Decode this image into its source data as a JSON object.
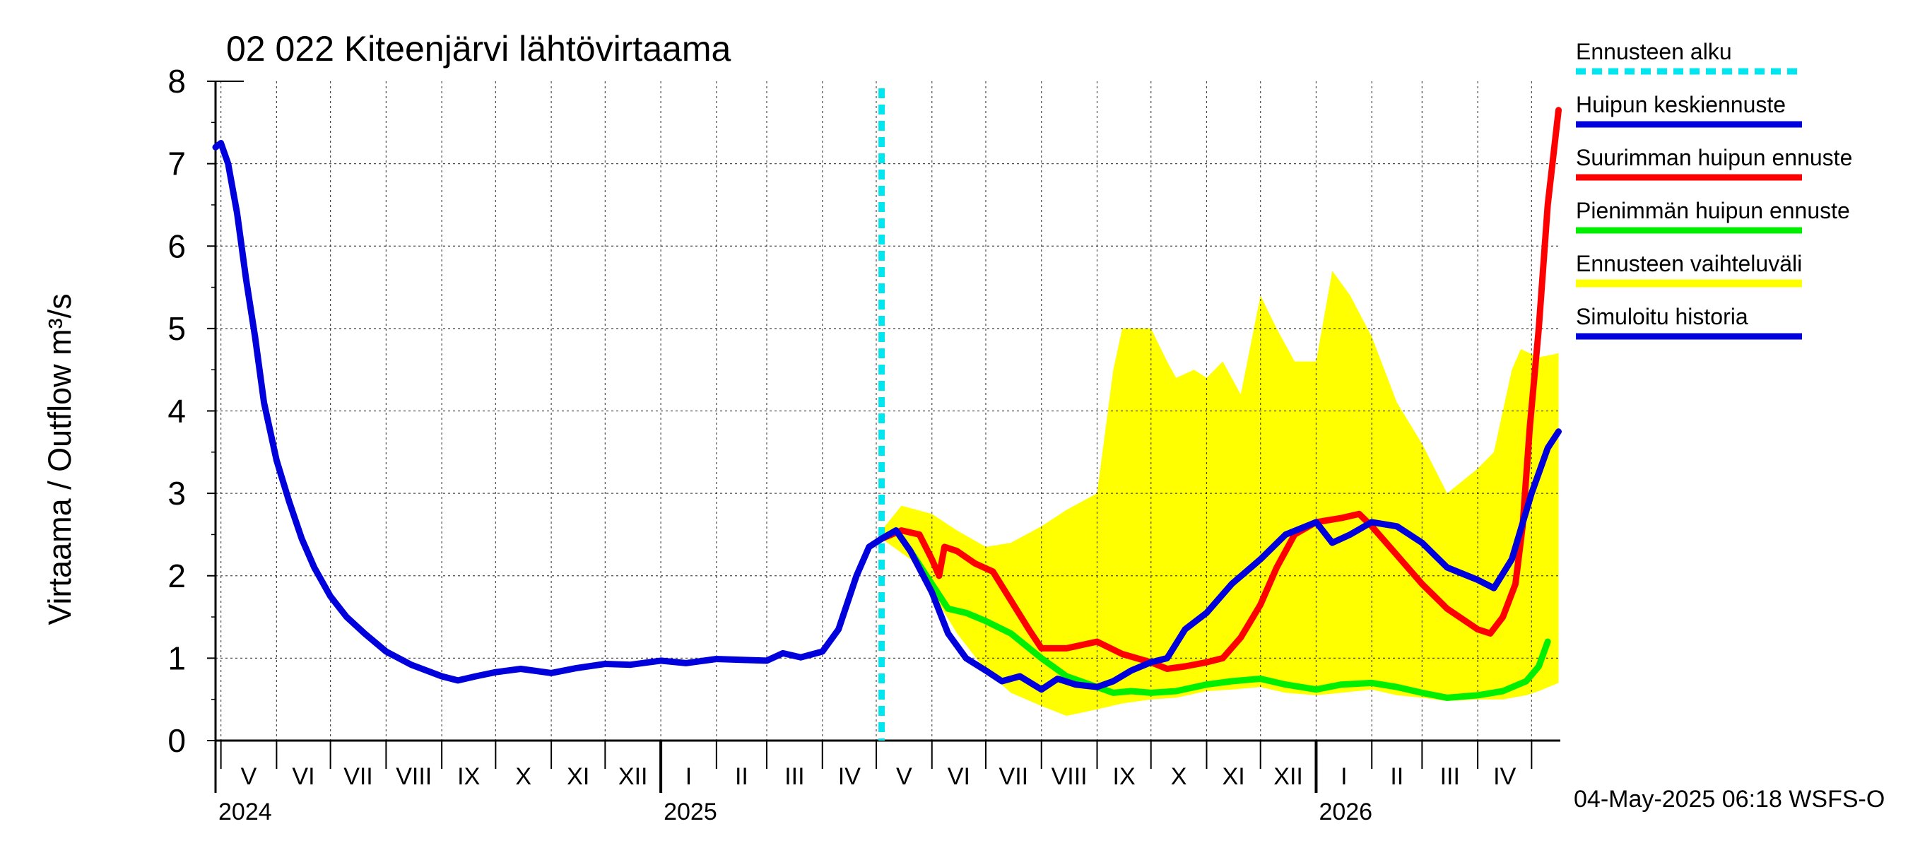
{
  "chart_data": {
    "type": "line",
    "title": "02 022 Kiteenjärvi lähtövirtaama",
    "ylabel": "Virtaama / Outflow    m³/s",
    "ylim": [
      0,
      8
    ],
    "yticks": [
      "0",
      "1",
      "2",
      "3",
      "4",
      "5",
      "6",
      "7",
      "8"
    ],
    "xlim": [
      "2024-04-28",
      "2026-05-17"
    ],
    "grid": true,
    "month_labels": [
      "V",
      "VI",
      "VII",
      "VIII",
      "IX",
      "X",
      "XI",
      "XII",
      "I",
      "II",
      "III",
      "IV",
      "V",
      "VI",
      "VII",
      "VIII",
      "IX",
      "X",
      "XI",
      "XII",
      "I",
      "II",
      "III",
      "IV"
    ],
    "year_labels": [
      "2024",
      "2025",
      "2026"
    ],
    "forecast_start": "2025-05-04",
    "footer": "04-May-2025 06:18 WSFS-O",
    "legend_position": "right",
    "colors": {
      "forecast_start": "#00e5ee",
      "mean_peak": "#0000dd",
      "max_peak": "#ff0000",
      "min_peak": "#00ee00",
      "range": "#ffff00",
      "history": "#0000dd"
    },
    "legend": [
      {
        "key": "forecast_start",
        "label": "Ennusteen alku",
        "style": "dashed"
      },
      {
        "key": "mean_peak",
        "label": "Huipun keskiennuste",
        "style": "solid"
      },
      {
        "key": "max_peak",
        "label": "Suurimman huipun ennuste",
        "style": "solid"
      },
      {
        "key": "min_peak",
        "label": "Pienimmän huipun ennuste",
        "style": "solid"
      },
      {
        "key": "range",
        "label": "Ennusteen vaihteluväli",
        "style": "band"
      },
      {
        "key": "history",
        "label": "Simuloitu historia",
        "style": "solid"
      }
    ],
    "series": [
      {
        "key": "history",
        "name": "Simuloitu historia",
        "points": [
          [
            "2024-04-28",
            7.2
          ],
          [
            "2024-05-01",
            7.25
          ],
          [
            "2024-05-05",
            7.0
          ],
          [
            "2024-05-10",
            6.4
          ],
          [
            "2024-05-15",
            5.6
          ],
          [
            "2024-05-20",
            4.9
          ],
          [
            "2024-05-25",
            4.1
          ],
          [
            "2024-06-01",
            3.4
          ],
          [
            "2024-06-08",
            2.9
          ],
          [
            "2024-06-15",
            2.45
          ],
          [
            "2024-06-22",
            2.1
          ],
          [
            "2024-07-01",
            1.75
          ],
          [
            "2024-07-10",
            1.5
          ],
          [
            "2024-07-20",
            1.3
          ],
          [
            "2024-08-01",
            1.08
          ],
          [
            "2024-08-15",
            0.92
          ],
          [
            "2024-09-01",
            0.78
          ],
          [
            "2024-09-10",
            0.73
          ],
          [
            "2024-09-20",
            0.78
          ],
          [
            "2024-10-01",
            0.83
          ],
          [
            "2024-10-15",
            0.87
          ],
          [
            "2024-11-01",
            0.82
          ],
          [
            "2024-11-15",
            0.88
          ],
          [
            "2024-12-01",
            0.93
          ],
          [
            "2024-12-15",
            0.92
          ],
          [
            "2025-01-01",
            0.97
          ],
          [
            "2025-01-15",
            0.94
          ],
          [
            "2025-02-01",
            0.99
          ],
          [
            "2025-02-15",
            0.98
          ],
          [
            "2025-03-01",
            0.97
          ],
          [
            "2025-03-10",
            1.06
          ],
          [
            "2025-03-20",
            1.01
          ],
          [
            "2025-04-01",
            1.08
          ],
          [
            "2025-04-10",
            1.35
          ],
          [
            "2025-04-20",
            2.0
          ],
          [
            "2025-04-27",
            2.35
          ],
          [
            "2025-05-04",
            2.45
          ]
        ]
      },
      {
        "key": "min_peak",
        "name": "Pienimmän huipun ennuste",
        "points": [
          [
            "2025-05-04",
            2.45
          ],
          [
            "2025-05-12",
            2.55
          ],
          [
            "2025-05-20",
            2.3
          ],
          [
            "2025-06-01",
            1.9
          ],
          [
            "2025-06-10",
            1.6
          ],
          [
            "2025-06-20",
            1.55
          ],
          [
            "2025-07-01",
            1.45
          ],
          [
            "2025-07-15",
            1.3
          ],
          [
            "2025-08-01",
            1.0
          ],
          [
            "2025-08-15",
            0.78
          ],
          [
            "2025-09-01",
            0.65
          ],
          [
            "2025-09-10",
            0.58
          ],
          [
            "2025-09-20",
            0.6
          ],
          [
            "2025-10-01",
            0.58
          ],
          [
            "2025-10-15",
            0.6
          ],
          [
            "2025-11-01",
            0.68
          ],
          [
            "2025-11-15",
            0.72
          ],
          [
            "2025-12-01",
            0.75
          ],
          [
            "2025-12-15",
            0.68
          ],
          [
            "2026-01-01",
            0.62
          ],
          [
            "2026-01-15",
            0.68
          ],
          [
            "2026-02-01",
            0.7
          ],
          [
            "2026-02-15",
            0.65
          ],
          [
            "2026-03-01",
            0.58
          ],
          [
            "2026-03-15",
            0.52
          ],
          [
            "2026-04-01",
            0.55
          ],
          [
            "2026-04-15",
            0.6
          ],
          [
            "2026-04-28",
            0.72
          ],
          [
            "2026-05-05",
            0.9
          ],
          [
            "2026-05-10",
            1.2
          ]
        ]
      },
      {
        "key": "max_peak",
        "name": "Suurimman huipun ennuste",
        "points": [
          [
            "2025-05-04",
            2.45
          ],
          [
            "2025-05-15",
            2.55
          ],
          [
            "2025-05-25",
            2.5
          ],
          [
            "2025-06-01",
            2.2
          ],
          [
            "2025-06-05",
            2.0
          ],
          [
            "2025-06-08",
            2.35
          ],
          [
            "2025-06-15",
            2.3
          ],
          [
            "2025-06-25",
            2.15
          ],
          [
            "2025-07-05",
            2.05
          ],
          [
            "2025-07-15",
            1.7
          ],
          [
            "2025-07-25",
            1.35
          ],
          [
            "2025-08-01",
            1.12
          ],
          [
            "2025-08-15",
            1.12
          ],
          [
            "2025-09-01",
            1.2
          ],
          [
            "2025-09-15",
            1.05
          ],
          [
            "2025-10-01",
            0.95
          ],
          [
            "2025-10-10",
            0.87
          ],
          [
            "2025-10-20",
            0.9
          ],
          [
            "2025-11-01",
            0.95
          ],
          [
            "2025-11-10",
            1.0
          ],
          [
            "2025-11-20",
            1.25
          ],
          [
            "2025-12-01",
            1.65
          ],
          [
            "2025-12-10",
            2.1
          ],
          [
            "2025-12-20",
            2.5
          ],
          [
            "2026-01-01",
            2.65
          ],
          [
            "2026-01-15",
            2.7
          ],
          [
            "2026-01-25",
            2.75
          ],
          [
            "2026-02-01",
            2.6
          ],
          [
            "2026-02-15",
            2.25
          ],
          [
            "2026-03-01",
            1.9
          ],
          [
            "2026-03-15",
            1.6
          ],
          [
            "2026-04-01",
            1.35
          ],
          [
            "2026-04-08",
            1.3
          ],
          [
            "2026-04-15",
            1.5
          ],
          [
            "2026-04-22",
            1.9
          ],
          [
            "2026-04-26",
            2.6
          ],
          [
            "2026-04-30",
            3.8
          ],
          [
            "2026-05-05",
            5.0
          ],
          [
            "2026-05-10",
            6.5
          ],
          [
            "2026-05-16",
            7.65
          ]
        ]
      },
      {
        "key": "mean_peak",
        "name": "Huipun keskiennuste",
        "points": [
          [
            "2025-05-04",
            2.45
          ],
          [
            "2025-05-12",
            2.55
          ],
          [
            "2025-05-20",
            2.3
          ],
          [
            "2025-06-01",
            1.8
          ],
          [
            "2025-06-10",
            1.3
          ],
          [
            "2025-06-20",
            1.0
          ],
          [
            "2025-07-01",
            0.85
          ],
          [
            "2025-07-10",
            0.72
          ],
          [
            "2025-07-20",
            0.78
          ],
          [
            "2025-08-01",
            0.62
          ],
          [
            "2025-08-10",
            0.75
          ],
          [
            "2025-08-20",
            0.68
          ],
          [
            "2025-09-01",
            0.65
          ],
          [
            "2025-09-10",
            0.72
          ],
          [
            "2025-09-20",
            0.85
          ],
          [
            "2025-10-01",
            0.95
          ],
          [
            "2025-10-10",
            1.0
          ],
          [
            "2025-10-20",
            1.35
          ],
          [
            "2025-11-01",
            1.55
          ],
          [
            "2025-11-15",
            1.9
          ],
          [
            "2025-12-01",
            2.2
          ],
          [
            "2025-12-15",
            2.5
          ],
          [
            "2026-01-01",
            2.65
          ],
          [
            "2026-01-10",
            2.4
          ],
          [
            "2026-01-20",
            2.5
          ],
          [
            "2026-02-01",
            2.65
          ],
          [
            "2026-02-15",
            2.6
          ],
          [
            "2026-03-01",
            2.4
          ],
          [
            "2026-03-15",
            2.1
          ],
          [
            "2026-04-01",
            1.95
          ],
          [
            "2026-04-10",
            1.85
          ],
          [
            "2026-04-20",
            2.2
          ],
          [
            "2026-05-01",
            3.0
          ],
          [
            "2026-05-10",
            3.55
          ],
          [
            "2026-05-16",
            3.75
          ]
        ]
      }
    ],
    "range_band": {
      "key": "range",
      "name": "Ennusteen vaihteluväli",
      "upper": [
        [
          "2025-05-04",
          2.55
        ],
        [
          "2025-05-15",
          2.85
        ],
        [
          "2025-06-01",
          2.75
        ],
        [
          "2025-06-15",
          2.55
        ],
        [
          "2025-07-01",
          2.35
        ],
        [
          "2025-07-15",
          2.4
        ],
        [
          "2025-08-01",
          2.6
        ],
        [
          "2025-08-15",
          2.8
        ],
        [
          "2025-09-01",
          3.0
        ],
        [
          "2025-09-10",
          4.5
        ],
        [
          "2025-09-15",
          5.0
        ],
        [
          "2025-10-01",
          5.0
        ],
        [
          "2025-10-10",
          4.6
        ],
        [
          "2025-10-15",
          4.4
        ],
        [
          "2025-10-25",
          4.5
        ],
        [
          "2025-11-01",
          4.4
        ],
        [
          "2025-11-10",
          4.6
        ],
        [
          "2025-11-20",
          4.2
        ],
        [
          "2025-12-01",
          5.4
        ],
        [
          "2025-12-10",
          5.0
        ],
        [
          "2025-12-20",
          4.6
        ],
        [
          "2026-01-01",
          4.6
        ],
        [
          "2026-01-10",
          5.7
        ],
        [
          "2026-01-20",
          5.4
        ],
        [
          "2026-02-01",
          4.9
        ],
        [
          "2026-02-15",
          4.1
        ],
        [
          "2026-03-01",
          3.6
        ],
        [
          "2026-03-15",
          3.0
        ],
        [
          "2026-04-01",
          3.3
        ],
        [
          "2026-04-10",
          3.5
        ],
        [
          "2026-04-20",
          4.5
        ],
        [
          "2026-04-25",
          4.75
        ],
        [
          "2026-05-05",
          4.65
        ],
        [
          "2026-05-16",
          4.7
        ]
      ],
      "lower": [
        [
          "2025-05-04",
          2.45
        ],
        [
          "2025-05-20",
          2.2
        ],
        [
          "2025-06-01",
          1.8
        ],
        [
          "2025-06-15",
          1.3
        ],
        [
          "2025-07-01",
          0.85
        ],
        [
          "2025-07-15",
          0.58
        ],
        [
          "2025-08-01",
          0.42
        ],
        [
          "2025-08-15",
          0.3
        ],
        [
          "2025-09-01",
          0.38
        ],
        [
          "2025-09-15",
          0.45
        ],
        [
          "2025-10-01",
          0.5
        ],
        [
          "2025-10-15",
          0.52
        ],
        [
          "2025-11-01",
          0.6
        ],
        [
          "2025-11-15",
          0.62
        ],
        [
          "2025-12-01",
          0.65
        ],
        [
          "2025-12-15",
          0.58
        ],
        [
          "2026-01-01",
          0.55
        ],
        [
          "2026-01-15",
          0.58
        ],
        [
          "2026-02-01",
          0.62
        ],
        [
          "2026-02-15",
          0.55
        ],
        [
          "2026-03-01",
          0.52
        ],
        [
          "2026-03-15",
          0.48
        ],
        [
          "2026-04-01",
          0.5
        ],
        [
          "2026-04-15",
          0.5
        ],
        [
          "2026-04-28",
          0.55
        ],
        [
          "2026-05-05",
          0.6
        ],
        [
          "2026-05-16",
          0.7
        ]
      ]
    }
  }
}
